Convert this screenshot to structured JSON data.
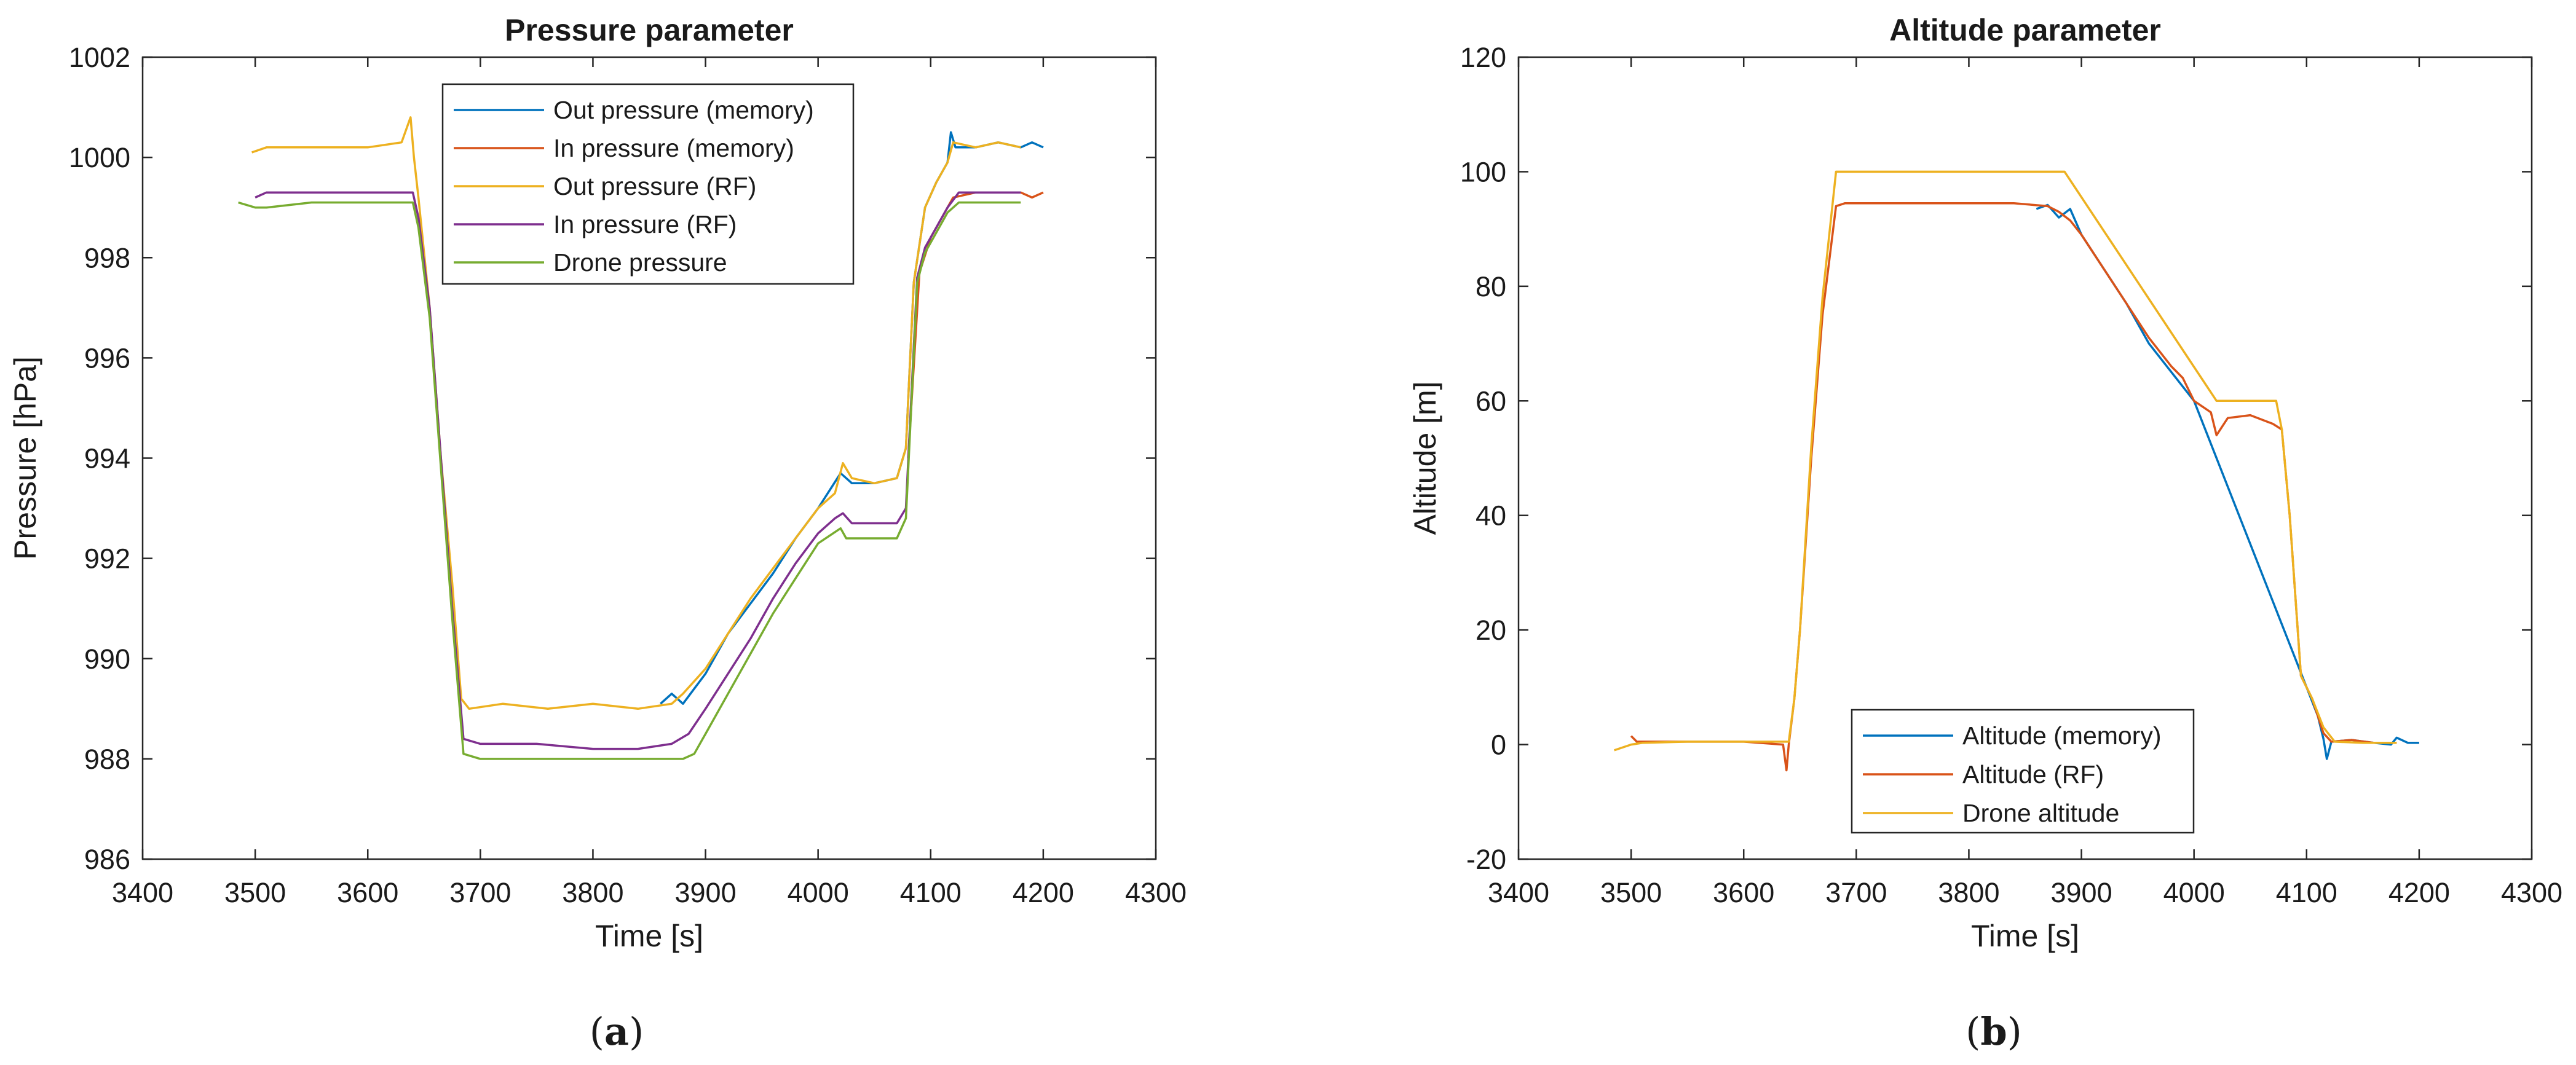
{
  "chart_data": [
    {
      "type": "line",
      "title": "Pressure parameter",
      "xlabel": "Time [s]",
      "ylabel": "Pressure [hPa]",
      "xlim": [
        3400,
        4300
      ],
      "ylim": [
        986,
        1002
      ],
      "xticks": [
        "3400",
        "3500",
        "3600",
        "3700",
        "3800",
        "3900",
        "4000",
        "4100",
        "4200",
        "4300"
      ],
      "yticks": [
        "986",
        "988",
        "990",
        "992",
        "994",
        "996",
        "998",
        "1000",
        "1002"
      ],
      "legend_position": "top-center",
      "caption": "(a)",
      "series": [
        {
          "name": "Out pressure (memory)",
          "color": "#0072BD",
          "x": [
            3860,
            3870,
            3880,
            3890,
            3900,
            3920,
            3940,
            3960,
            3980,
            4000,
            4020,
            4030,
            4050,
            4070,
            4078,
            4085,
            4095,
            4105,
            4115,
            4118,
            4122,
            4140,
            4160,
            4180,
            4190,
            4200
          ],
          "y": [
            989.1,
            989.3,
            989.1,
            989.4,
            989.7,
            990.5,
            991.1,
            991.7,
            992.4,
            993.0,
            993.7,
            993.5,
            993.5,
            993.6,
            994.2,
            997.5,
            999.0,
            999.5,
            999.9,
            1000.5,
            1000.2,
            1000.2,
            1000.3,
            1000.2,
            1000.3,
            1000.2
          ]
        },
        {
          "name": "In pressure (memory)",
          "color": "#D95319",
          "x": [
            4080,
            4090,
            4100,
            4110,
            4120,
            4140,
            4160,
            4180,
            4190,
            4200
          ],
          "y": [
            994.0,
            997.7,
            998.4,
            998.8,
            999.2,
            999.3,
            999.3,
            999.3,
            999.2,
            999.3
          ]
        },
        {
          "name": "Out pressure (RF)",
          "color": "#EDB120",
          "x": [
            3497,
            3510,
            3550,
            3600,
            3630,
            3638,
            3641,
            3645,
            3655,
            3665,
            3675,
            3683,
            3690,
            3720,
            3760,
            3800,
            3840,
            3870,
            3880,
            3900,
            3920,
            3940,
            3960,
            3980,
            4000,
            4015,
            4022,
            4030,
            4050,
            4070,
            4078,
            4085,
            4095,
            4105,
            4115,
            4120,
            4140,
            4160,
            4180
          ],
          "y": [
            1000.1,
            1000.2,
            1000.2,
            1000.2,
            1000.3,
            1000.8,
            1000.0,
            999.2,
            997.0,
            994.0,
            991.5,
            989.2,
            989.0,
            989.1,
            989.0,
            989.1,
            989.0,
            989.1,
            989.3,
            989.8,
            990.5,
            991.2,
            991.8,
            992.4,
            993.0,
            993.3,
            993.9,
            993.6,
            993.5,
            993.6,
            994.2,
            997.5,
            999.0,
            999.5,
            999.9,
            1000.3,
            1000.2,
            1000.3,
            1000.2
          ]
        },
        {
          "name": "In pressure (RF)",
          "color": "#7E2F8E",
          "x": [
            3500,
            3510,
            3550,
            3600,
            3635,
            3640,
            3645,
            3655,
            3665,
            3675,
            3685,
            3700,
            3750,
            3800,
            3840,
            3870,
            3885,
            3900,
            3920,
            3940,
            3960,
            3980,
            4000,
            4015,
            4022,
            4030,
            4050,
            4070,
            4078,
            4088,
            4095,
            4105,
            4115,
            4125,
            4150,
            4180
          ],
          "y": [
            999.2,
            999.3,
            999.3,
            999.3,
            999.3,
            999.3,
            998.8,
            997.0,
            994.0,
            991.0,
            988.4,
            988.3,
            988.3,
            988.2,
            988.2,
            988.3,
            988.5,
            989.0,
            989.7,
            990.4,
            991.2,
            991.9,
            992.5,
            992.8,
            992.9,
            992.7,
            992.7,
            992.7,
            993.0,
            997.6,
            998.2,
            998.6,
            999.0,
            999.3,
            999.3,
            999.3
          ]
        },
        {
          "name": "Drone pressure",
          "color": "#77AC30",
          "x": [
            3485,
            3500,
            3510,
            3550,
            3600,
            3635,
            3640,
            3645,
            3655,
            3665,
            3675,
            3685,
            3700,
            3750,
            3800,
            3850,
            3880,
            3890,
            3900,
            3920,
            3940,
            3960,
            3980,
            4000,
            4020,
            4025,
            4050,
            4070,
            4078,
            4088,
            4095,
            4105,
            4115,
            4125,
            4150,
            4180
          ],
          "y": [
            999.1,
            999.0,
            999.0,
            999.1,
            999.1,
            999.1,
            999.1,
            998.6,
            996.8,
            993.8,
            990.8,
            988.1,
            988.0,
            988.0,
            988.0,
            988.0,
            988.0,
            988.1,
            988.5,
            989.3,
            990.1,
            990.9,
            991.6,
            992.3,
            992.6,
            992.4,
            992.4,
            992.4,
            992.8,
            997.5,
            998.1,
            998.5,
            998.9,
            999.1,
            999.1,
            999.1
          ]
        }
      ]
    },
    {
      "type": "line",
      "title": "Altitude parameter",
      "xlabel": "Time [s]",
      "ylabel": "Altitude [m]",
      "xlim": [
        3400,
        4300
      ],
      "ylim": [
        -20,
        120
      ],
      "xticks": [
        "3400",
        "3500",
        "3600",
        "3700",
        "3800",
        "3900",
        "4000",
        "4100",
        "4200",
        "4300"
      ],
      "yticks": [
        "-20",
        "0",
        "20",
        "40",
        "60",
        "80",
        "100",
        "120"
      ],
      "legend_position": "bottom-center",
      "caption": "(b)",
      "series": [
        {
          "name": "Altitude (memory)",
          "color": "#0072BD",
          "x": [
            3860,
            3870,
            3880,
            3890,
            3900,
            3920,
            3940,
            3960,
            3980,
            4000,
            4100,
            4110,
            4115,
            4118,
            4122,
            4140,
            4160,
            4175,
            4180,
            4190,
            4200
          ],
          "y": [
            93.5,
            94.2,
            92.0,
            93.5,
            89.0,
            83.0,
            77.0,
            70.0,
            65.0,
            60.0,
            10.0,
            5.0,
            1.0,
            -2.5,
            0.5,
            0.8,
            0.3,
            0.0,
            1.2,
            0.3,
            0.3
          ]
        },
        {
          "name": "Altitude (RF)",
          "color": "#D95319",
          "x": [
            3500,
            3505,
            3520,
            3560,
            3600,
            3635,
            3638,
            3640,
            3645,
            3650,
            3660,
            3670,
            3682,
            3690,
            3720,
            3760,
            3800,
            3840,
            3870,
            3880,
            3890,
            3900,
            3920,
            3940,
            3960,
            3980,
            3990,
            4000,
            4015,
            4020,
            4030,
            4050,
            4070,
            4078,
            4085,
            4095,
            4105,
            4115,
            4122,
            4140,
            4160,
            4180
          ],
          "y": [
            1.5,
            0.5,
            0.5,
            0.5,
            0.5,
            0.0,
            -4.5,
            0.0,
            8.0,
            20.0,
            50.0,
            75.0,
            94.0,
            94.5,
            94.5,
            94.5,
            94.5,
            94.5,
            94.0,
            93.0,
            91.5,
            89.0,
            83.0,
            77.0,
            71.0,
            66.0,
            64.0,
            60.0,
            58.0,
            54.0,
            57.0,
            57.5,
            56.0,
            55.0,
            40.0,
            12.0,
            8.0,
            2.0,
            0.5,
            0.8,
            0.3,
            0.3
          ]
        },
        {
          "name": "Drone altitude",
          "color": "#EDB120",
          "x": [
            3485,
            3500,
            3510,
            3550,
            3600,
            3635,
            3640,
            3645,
            3650,
            3660,
            3670,
            3682,
            3700,
            3750,
            3800,
            3850,
            3885,
            4020,
            4030,
            4050,
            4073,
            4078,
            4085,
            4095,
            4105,
            4115,
            4125,
            4150,
            4180
          ],
          "y": [
            -1.0,
            0.0,
            0.3,
            0.5,
            0.5,
            0.5,
            0.5,
            8.0,
            20.0,
            52.0,
            78.0,
            100.0,
            100.0,
            100.0,
            100.0,
            100.0,
            100.0,
            60.0,
            60.0,
            60.0,
            60.0,
            55.0,
            40.0,
            12.0,
            8.0,
            3.0,
            0.5,
            0.3,
            0.3
          ]
        }
      ]
    }
  ]
}
